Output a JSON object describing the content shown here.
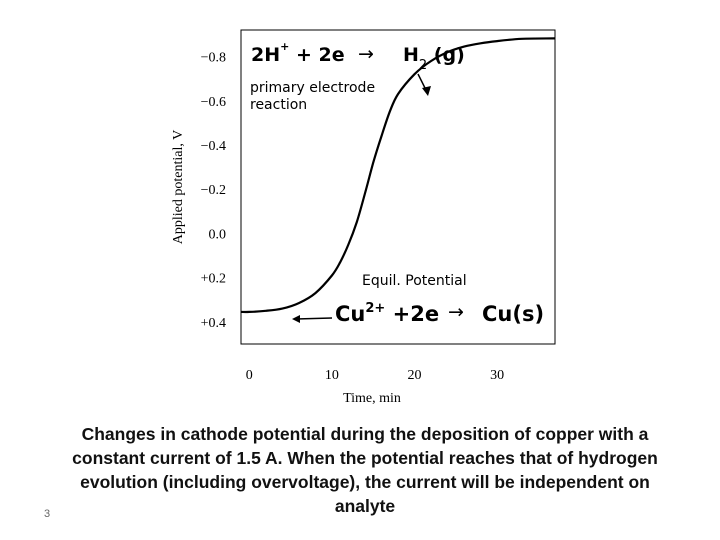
{
  "chart_data": {
    "type": "line",
    "title": "",
    "xlabel": "Time, min",
    "ylabel": "Applied potential, V",
    "xlim": [
      -1,
      37
    ],
    "ylim": [
      0.5,
      -0.92
    ],
    "y_axis_inverted": true,
    "grid": false,
    "x_ticks": [
      0,
      10,
      20,
      30
    ],
    "x_tick_labels": [
      "0",
      "10",
      "20",
      "30"
    ],
    "y_ticks": [
      -0.8,
      -0.6,
      -0.4,
      -0.2,
      0.0,
      0.2,
      0.4
    ],
    "y_tick_labels": [
      "−0.8",
      "−0.6",
      "−0.4",
      "−0.2",
      "0.0",
      "+0.2",
      "+0.4"
    ],
    "series": [
      {
        "values": [
          [
            -1,
            0.355
          ],
          [
            0,
            0.355
          ],
          [
            2,
            0.35
          ],
          [
            4,
            0.34
          ],
          [
            6,
            0.315
          ],
          [
            8,
            0.27
          ],
          [
            10,
            0.19
          ],
          [
            11,
            0.13
          ],
          [
            12,
            0.05
          ],
          [
            13,
            -0.05
          ],
          [
            14,
            -0.18
          ],
          [
            15,
            -0.32
          ],
          [
            16,
            -0.44
          ],
          [
            17,
            -0.55
          ],
          [
            18,
            -0.63
          ],
          [
            20,
            -0.72
          ],
          [
            22,
            -0.78
          ],
          [
            24,
            -0.82
          ],
          [
            26,
            -0.845
          ],
          [
            28,
            -0.86
          ],
          [
            30,
            -0.87
          ],
          [
            33,
            -0.88
          ],
          [
            37,
            -0.882
          ]
        ]
      }
    ],
    "annotations": [
      {
        "id": "eq-h2",
        "text": "2H+ + 2e → H2 (g)",
        "arrow_to": [
          22,
          -0.78
        ]
      },
      {
        "id": "primary",
        "text_lines": [
          "primary electrode",
          "reaction"
        ]
      },
      {
        "id": "equil",
        "text": "Equil. Potential"
      },
      {
        "id": "eq-cu",
        "text": "Cu2+ +2e → Cu(s)",
        "arrow_to": [
          6,
          0.315
        ]
      }
    ]
  },
  "annotations": {
    "eq_h2": {
      "reactant": "2H",
      "charge": "+",
      "mid": " + 2e",
      "arrow": "→",
      "product": "H",
      "sub": "2",
      "phase": " (g)"
    },
    "primary_line1": "primary electrode",
    "primary_line2": "reaction",
    "equil_label": "Equil. Potential",
    "eq_cu": {
      "reactant": "Cu",
      "charge": "2+",
      "mid": " +2e",
      "arrow": "→",
      "product": "Cu(s)"
    }
  },
  "caption": "Changes in cathode potential during the deposition of copper with a constant current of 1.5 A. When the potential reaches that of hydrogen evolution (including overvoltage), the current will be independent on analyte",
  "slide_number": "3"
}
